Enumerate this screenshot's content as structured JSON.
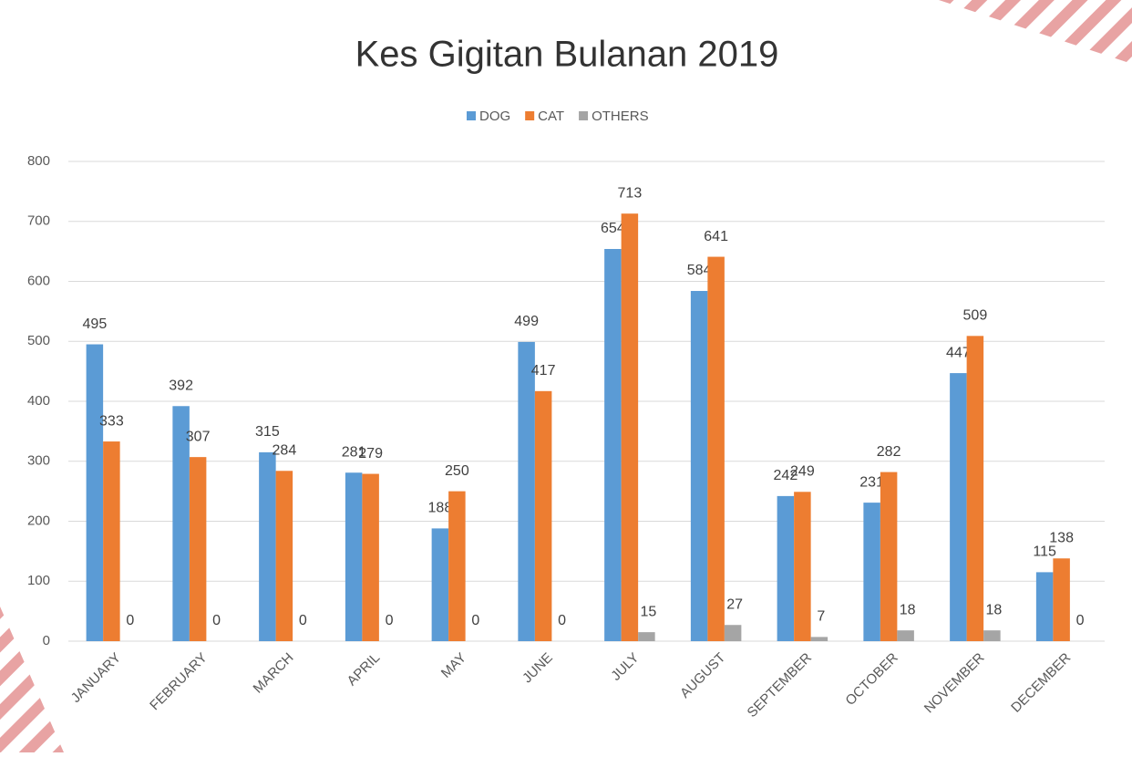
{
  "chart_data": {
    "type": "bar",
    "title": "Kes Gigitan Bulanan 2019",
    "categories": [
      "JANUARY",
      "FEBRUARY",
      "MARCH",
      "APRIL",
      "MAY",
      "JUNE",
      "JULY",
      "AUGUST",
      "SEPTEMBER",
      "OCTOBER",
      "NOVEMBER",
      "DECEMBER"
    ],
    "series": [
      {
        "name": "DOG",
        "color": "#5b9bd5",
        "values": [
          495,
          392,
          315,
          281,
          188,
          499,
          654,
          584,
          242,
          231,
          447,
          115
        ]
      },
      {
        "name": "CAT",
        "color": "#ed7d31",
        "values": [
          333,
          307,
          284,
          279,
          250,
          417,
          713,
          641,
          249,
          282,
          509,
          138
        ]
      },
      {
        "name": "OTHERS",
        "color": "#a5a5a5",
        "values": [
          0,
          0,
          0,
          0,
          0,
          0,
          15,
          27,
          7,
          18,
          18,
          0
        ]
      }
    ],
    "ylim": [
      0,
      800
    ],
    "yticks": [
      0,
      100,
      200,
      300,
      400,
      500,
      600,
      700,
      800
    ],
    "grid": true,
    "legend": "top"
  }
}
